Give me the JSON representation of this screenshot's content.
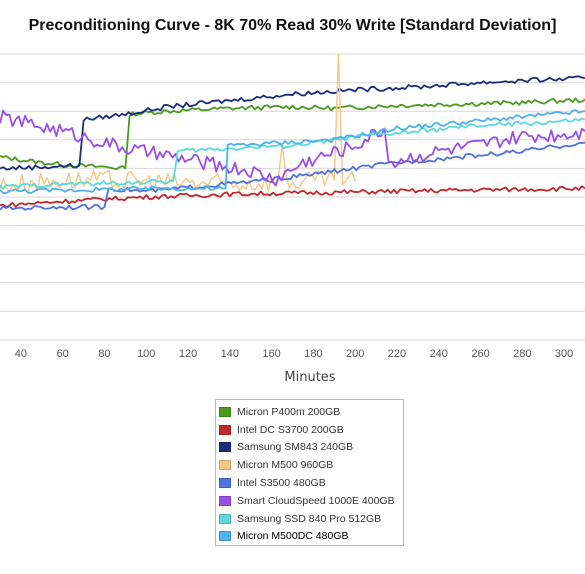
{
  "chart_data": {
    "type": "line",
    "title": "Preconditioning Curve - 8K 70% Read 30% Write [Standard Deviation]",
    "xlabel": "Minutes",
    "ylabel": "",
    "xlim": [
      30,
      310
    ],
    "ylim": [
      0,
      10
    ],
    "x_ticks": [
      40,
      60,
      80,
      100,
      120,
      140,
      160,
      180,
      200,
      220,
      240,
      260,
      280,
      300
    ],
    "grid": "horizontal",
    "legend_position": "bottom",
    "series": [
      {
        "name": "Micron P400m 200GB",
        "color": "#4a9a1f",
        "points": [
          [
            30,
            6.4
          ],
          [
            40,
            6.3
          ],
          [
            50,
            6.2
          ],
          [
            65,
            6.1
          ],
          [
            80,
            6.05
          ],
          [
            90,
            6.0
          ],
          [
            92,
            7.9
          ],
          [
            110,
            8.0
          ],
          [
            140,
            8.1
          ],
          [
            170,
            8.15
          ],
          [
            190,
            8.1
          ],
          [
            220,
            8.2
          ],
          [
            250,
            8.25
          ],
          [
            280,
            8.3
          ],
          [
            310,
            8.4
          ]
        ]
      },
      {
        "name": "Intel DC S3700 200GB",
        "color": "#c0282c",
        "points": [
          [
            30,
            4.7
          ],
          [
            60,
            4.85
          ],
          [
            100,
            5.0
          ],
          [
            140,
            5.1
          ],
          [
            180,
            5.15
          ],
          [
            220,
            5.2
          ],
          [
            260,
            5.25
          ],
          [
            310,
            5.3
          ]
        ]
      },
      {
        "name": "Samsung SM843 240GB",
        "color": "#1a2d7a",
        "points": [
          [
            30,
            6.0
          ],
          [
            50,
            6.05
          ],
          [
            68,
            6.1
          ],
          [
            70,
            7.7
          ],
          [
            90,
            7.9
          ],
          [
            110,
            8.15
          ],
          [
            130,
            8.3
          ],
          [
            150,
            8.45
          ],
          [
            170,
            8.6
          ],
          [
            200,
            8.75
          ],
          [
            230,
            8.85
          ],
          [
            260,
            9.0
          ],
          [
            290,
            9.1
          ],
          [
            310,
            9.15
          ]
        ]
      },
      {
        "name": "Micron M500 960GB",
        "color": "#f2c786",
        "points": [
          [
            30,
            5.4
          ],
          [
            60,
            5.6
          ],
          [
            100,
            5.55
          ],
          [
            140,
            5.45
          ],
          [
            163,
            5.55
          ],
          [
            165,
            6.8
          ],
          [
            167,
            5.5
          ],
          [
            190,
            5.6
          ],
          [
            192,
            10.0
          ],
          [
            194,
            5.6
          ],
          [
            200,
            5.55
          ]
        ]
      },
      {
        "name": "Intel S3500 480GB",
        "color": "#4f72df",
        "points": [
          [
            30,
            4.6
          ],
          [
            60,
            4.65
          ],
          [
            80,
            4.65
          ],
          [
            82,
            5.3
          ],
          [
            100,
            5.2
          ],
          [
            130,
            5.4
          ],
          [
            160,
            5.6
          ],
          [
            190,
            5.9
          ],
          [
            220,
            6.2
          ],
          [
            250,
            6.4
          ],
          [
            280,
            6.6
          ],
          [
            310,
            6.9
          ]
        ]
      },
      {
        "name": "Smart CloudSpeed 1000E 400GB",
        "color": "#9a4de6",
        "points": [
          [
            30,
            7.8
          ],
          [
            60,
            7.3
          ],
          [
            90,
            6.7
          ],
          [
            120,
            6.3
          ],
          [
            150,
            5.9
          ],
          [
            162,
            5.6
          ],
          [
            175,
            6.2
          ],
          [
            200,
            6.8
          ],
          [
            214,
            7.4
          ],
          [
            216,
            6.2
          ],
          [
            240,
            6.6
          ],
          [
            260,
            6.8
          ],
          [
            280,
            7.1
          ],
          [
            300,
            7.2
          ],
          [
            310,
            7.3
          ]
        ]
      },
      {
        "name": "Samsung SSD 840 Pro 512GB",
        "color": "#5cd9d9",
        "points": [
          [
            30,
            5.35
          ],
          [
            60,
            5.45
          ],
          [
            90,
            5.5
          ],
          [
            113,
            5.55
          ],
          [
            115,
            6.6
          ],
          [
            140,
            6.7
          ],
          [
            170,
            6.8
          ],
          [
            200,
            7.1
          ],
          [
            230,
            7.3
          ],
          [
            260,
            7.5
          ],
          [
            290,
            7.6
          ],
          [
            310,
            7.7
          ]
        ]
      },
      {
        "name": "Micron M500DC 480GB",
        "color": "#4fb0ea",
        "points": [
          [
            30,
            5.2
          ],
          [
            70,
            5.25
          ],
          [
            110,
            5.3
          ],
          [
            138,
            5.3
          ],
          [
            139,
            6.8
          ],
          [
            165,
            6.9
          ],
          [
            190,
            7.0
          ],
          [
            220,
            7.4
          ],
          [
            250,
            7.6
          ],
          [
            280,
            7.8
          ],
          [
            310,
            8.0
          ]
        ]
      }
    ]
  },
  "legend": {
    "selected_index": 7,
    "items": [
      {
        "label": "Micron P400m 200GB",
        "color": "#4a9a1f"
      },
      {
        "label": "Intel DC S3700 200GB",
        "color": "#c0282c"
      },
      {
        "label": "Samsung SM843 240GB",
        "color": "#1a2d7a"
      },
      {
        "label": "Micron M500 960GB",
        "color": "#f2c786"
      },
      {
        "label": "Intel S3500 480GB",
        "color": "#4f72df"
      },
      {
        "label": "Smart CloudSpeed 1000E 400GB",
        "color": "#9a4de6"
      },
      {
        "label": "Samsung SSD 840 Pro 512GB",
        "color": "#5cd9d9"
      },
      {
        "label": "Micron M500DC 480GB",
        "color": "#4fb0ea"
      }
    ]
  }
}
